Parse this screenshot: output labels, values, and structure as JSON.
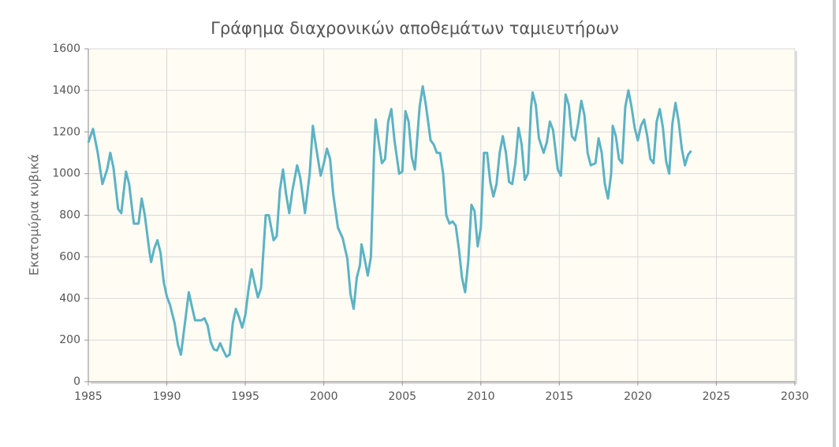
{
  "chart_data": {
    "type": "line",
    "title": "Γράφημα διαχρονικών αποθεμάτων ταμιευτήρων",
    "y_label": "Εκατομύρια κυβικά",
    "x": [
      1985.0,
      1985.3,
      1985.6,
      1985.9,
      1986.2,
      1986.4,
      1986.6,
      1986.9,
      1987.1,
      1987.4,
      1987.6,
      1987.9,
      1988.2,
      1988.4,
      1988.6,
      1988.9,
      1989.0,
      1989.2,
      1989.4,
      1989.6,
      1989.8,
      1990.0,
      1990.2,
      1990.5,
      1990.7,
      1990.9,
      1991.1,
      1991.4,
      1991.6,
      1991.8,
      1992.2,
      1992.4,
      1992.6,
      1992.8,
      1993.0,
      1993.2,
      1993.4,
      1993.6,
      1993.8,
      1994.0,
      1994.2,
      1994.4,
      1994.6,
      1994.8,
      1995.0,
      1995.2,
      1995.4,
      1995.6,
      1995.8,
      1996.0,
      1996.3,
      1996.5,
      1996.8,
      1997.0,
      1997.2,
      1997.4,
      1997.6,
      1997.8,
      1998.0,
      1998.3,
      1998.5,
      1998.8,
      1999.1,
      1999.3,
      1999.5,
      1999.8,
      2000.0,
      2000.2,
      2000.4,
      2000.6,
      2000.9,
      2001.2,
      2001.5,
      2001.7,
      2001.9,
      2002.1,
      2002.3,
      2002.4,
      2002.6,
      2002.8,
      2003.0,
      2003.2,
      2003.3,
      2003.5,
      2003.7,
      2003.9,
      2004.1,
      2004.3,
      2004.5,
      2004.8,
      2005.0,
      2005.2,
      2005.4,
      2005.6,
      2005.8,
      2006.1,
      2006.3,
      2006.5,
      2006.8,
      2007.0,
      2007.2,
      2007.4,
      2007.6,
      2007.8,
      2008.0,
      2008.2,
      2008.4,
      2008.6,
      2008.8,
      2009.0,
      2009.2,
      2009.4,
      2009.6,
      2009.8,
      2010.0,
      2010.2,
      2010.4,
      2010.6,
      2010.8,
      2011.0,
      2011.2,
      2011.4,
      2011.6,
      2011.8,
      2012.0,
      2012.2,
      2012.4,
      2012.6,
      2012.8,
      2013.0,
      2013.2,
      2013.3,
      2013.5,
      2013.7,
      2014.0,
      2014.2,
      2014.4,
      2014.6,
      2014.9,
      2015.1,
      2015.3,
      2015.4,
      2015.6,
      2015.8,
      2016.0,
      2016.2,
      2016.4,
      2016.6,
      2016.8,
      2017.0,
      2017.3,
      2017.5,
      2017.7,
      2017.9,
      2018.1,
      2018.3,
      2018.4,
      2018.6,
      2018.8,
      2019.0,
      2019.2,
      2019.4,
      2019.6,
      2019.8,
      2020.0,
      2020.2,
      2020.4,
      2020.6,
      2020.8,
      2021.0,
      2021.2,
      2021.4,
      2021.6,
      2021.8,
      2022.0,
      2022.2,
      2022.4,
      2022.6,
      2022.8,
      2023.0,
      2023.2,
      2023.4
    ],
    "series": [
      {
        "color": "#5bb3c4",
        "values": [
          1150,
          1215,
          1100,
          950,
          1020,
          1100,
          1030,
          830,
          810,
          1010,
          950,
          760,
          760,
          880,
          800,
          620,
          575,
          640,
          680,
          620,
          480,
          410,
          370,
          280,
          180,
          130,
          250,
          430,
          360,
          295,
          295,
          305,
          270,
          190,
          155,
          150,
          185,
          150,
          120,
          130,
          280,
          350,
          310,
          260,
          320,
          440,
          540,
          470,
          405,
          450,
          800,
          800,
          680,
          700,
          920,
          1020,
          900,
          810,
          920,
          1040,
          980,
          810,
          1000,
          1230,
          1130,
          990,
          1050,
          1120,
          1070,
          900,
          740,
          690,
          590,
          420,
          350,
          500,
          560,
          660,
          590,
          510,
          600,
          1100,
          1260,
          1150,
          1050,
          1070,
          1250,
          1310,
          1160,
          1000,
          1010,
          1300,
          1250,
          1080,
          1020,
          1320,
          1420,
          1330,
          1160,
          1140,
          1100,
          1100,
          1000,
          800,
          760,
          770,
          750,
          640,
          500,
          430,
          580,
          850,
          820,
          650,
          740,
          1100,
          1100,
          960,
          890,
          950,
          1100,
          1180,
          1100,
          960,
          950,
          1050,
          1220,
          1140,
          970,
          1000,
          1320,
          1390,
          1330,
          1170,
          1100,
          1150,
          1250,
          1210,
          1020,
          990,
          1250,
          1380,
          1330,
          1180,
          1160,
          1240,
          1350,
          1280,
          1100,
          1040,
          1050,
          1170,
          1100,
          950,
          880,
          1000,
          1230,
          1180,
          1070,
          1050,
          1320,
          1400,
          1320,
          1220,
          1160,
          1230,
          1260,
          1180,
          1070,
          1050,
          1250,
          1310,
          1220,
          1060,
          1000,
          1240,
          1340,
          1250,
          1120,
          1040,
          1090,
          1110
        ]
      }
    ],
    "xlim": [
      1985,
      2030
    ],
    "xticks": [
      1985,
      1990,
      1995,
      2000,
      2005,
      2010,
      2015,
      2020,
      2025,
      2030
    ],
    "ylim": [
      0,
      1600
    ],
    "yticks": [
      0,
      200,
      400,
      600,
      800,
      1000,
      1200,
      1400,
      1600
    ],
    "grid": true
  }
}
